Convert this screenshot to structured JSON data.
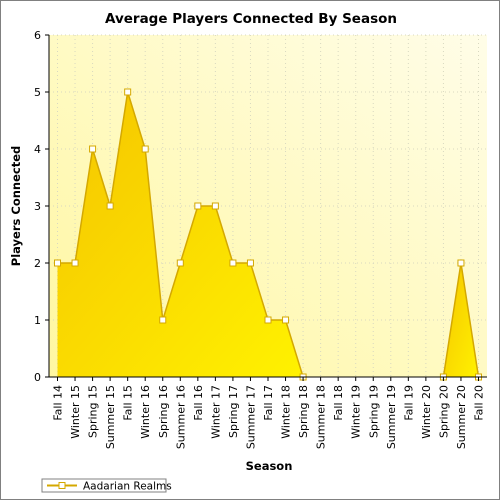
{
  "chart_data": {
    "type": "area",
    "title": "Average Players Connected By Season",
    "xlabel": "Season",
    "ylabel": "Players Connected",
    "ylim": [
      0,
      6
    ],
    "yticks": [
      0,
      1,
      2,
      3,
      4,
      5,
      6
    ],
    "grid": true,
    "legend_position": "bottom-left",
    "categories": [
      "Fall 14",
      "Winter 15",
      "Spring 15",
      "Summer 15",
      "Fall 15",
      "Winter 16",
      "Spring 16",
      "Summer 16",
      "Fall 16",
      "Winter 17",
      "Spring 17",
      "Summer 17",
      "Fall 17",
      "Winter 18",
      "Spring 18",
      "Summer 18",
      "Fall 18",
      "Winter 19",
      "Spring 19",
      "Summer 19",
      "Fall 19",
      "Winter 20",
      "Spring 20",
      "Summer 20",
      "Fall 20"
    ],
    "series": [
      {
        "name": "Aadarian Realms",
        "values": [
          2,
          2,
          4,
          3,
          5,
          4,
          1,
          2,
          3,
          3,
          2,
          2,
          1,
          1,
          0,
          null,
          null,
          null,
          null,
          null,
          null,
          null,
          0,
          2,
          0
        ],
        "color": "#ffd700",
        "line_color": "#d4a800"
      }
    ]
  }
}
